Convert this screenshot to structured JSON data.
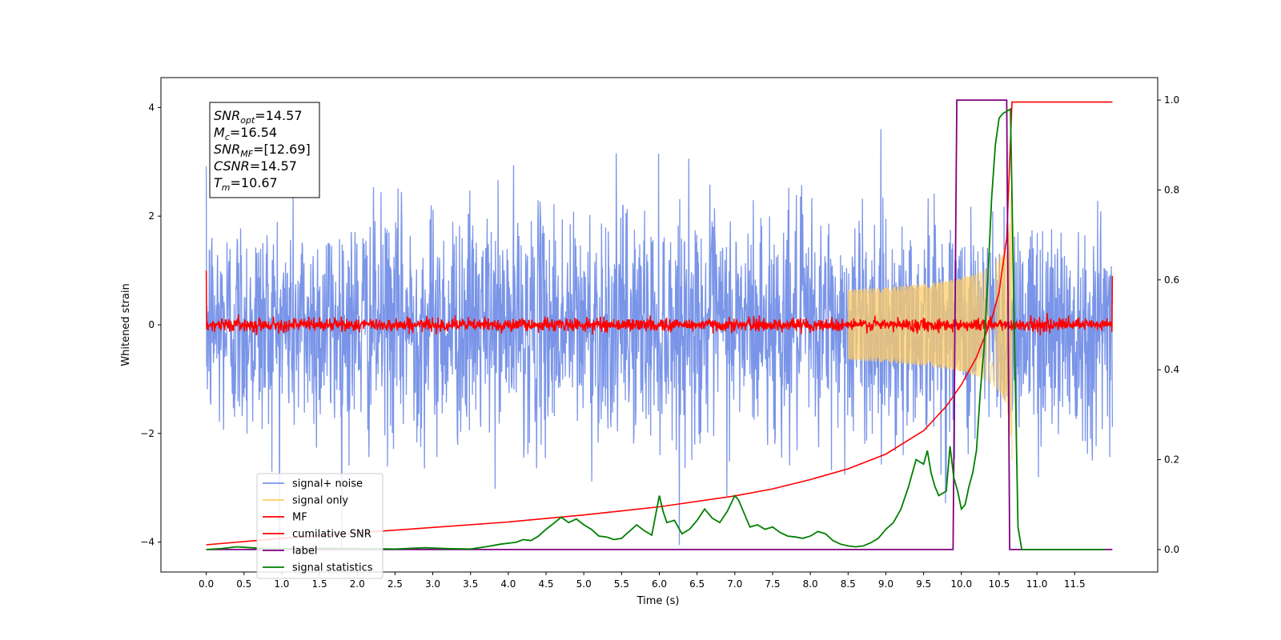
{
  "chart_data": {
    "type": "line",
    "xlabel": "Time (s)",
    "ylabel": "Whitened strain",
    "xlim": [
      -0.6,
      12.6
    ],
    "ylim": [
      -4.55,
      4.55
    ],
    "y2lim": [
      -0.05,
      1.05
    ],
    "x_ticks": [
      "0.0",
      "0.5",
      "1.0",
      "1.5",
      "2.0",
      "2.5",
      "3.0",
      "3.5",
      "4.0",
      "4.5",
      "5.0",
      "5.5",
      "6.0",
      "6.5",
      "7.0",
      "7.5",
      "8.0",
      "8.5",
      "9.0",
      "9.5",
      "10.0",
      "10.5",
      "11.0",
      "11.5"
    ],
    "y_ticks": [
      "4",
      "2",
      "0",
      "−2",
      "−4"
    ],
    "y2_ticks": [
      "1.0",
      "0.8",
      "0.6",
      "0.4",
      "0.2",
      "0.0"
    ],
    "grid": false,
    "legend_placement": "lower-left",
    "annotation": {
      "lines": [
        {
          "base": "SNR",
          "sub": "opt",
          "value": "=14.57"
        },
        {
          "base": "M",
          "sub": "c",
          "value": "=16.54"
        },
        {
          "base": "SNR",
          "sub": "MF",
          "value": "=[12.69]"
        },
        {
          "base": "CSNR",
          "sub": "",
          "value": "=14.57"
        },
        {
          "base": "T",
          "sub": "m",
          "value": "=10.67"
        }
      ]
    },
    "series": [
      {
        "name": "signal+ noise",
        "color": "#7a95e8",
        "axis": "left",
        "kind": "noise",
        "x_range": [
          0.0,
          12.0
        ],
        "amplitude_sigma": 1.0,
        "max": 4.15,
        "min": -4.15
      },
      {
        "name": "signal only",
        "color": "#ffcc66",
        "axis": "left",
        "kind": "chirp",
        "x_range": [
          8.5,
          10.67
        ],
        "peak_amplitude": 2.5,
        "merger_time": 10.67
      },
      {
        "name": "MF",
        "color": "#ff0000",
        "axis": "left",
        "kind": "noise",
        "x_range": [
          0.0,
          12.0
        ],
        "amplitude_sigma": 0.06,
        "start_value": 1.0,
        "end_value": 0.9
      },
      {
        "name": "cumilative SNR",
        "color": "#ff0000",
        "axis": "left",
        "x": [
          0.0,
          1.0,
          2.0,
          3.0,
          4.0,
          5.0,
          6.0,
          7.0,
          7.5,
          8.0,
          8.5,
          9.0,
          9.5,
          9.8,
          10.0,
          10.2,
          10.4,
          10.5,
          10.6,
          10.67,
          12.0
        ],
        "values": [
          -4.05,
          -3.93,
          -3.83,
          -3.73,
          -3.63,
          -3.5,
          -3.35,
          -3.15,
          -3.02,
          -2.85,
          -2.65,
          -2.38,
          -1.95,
          -1.5,
          -1.1,
          -0.6,
          0.1,
          0.6,
          1.6,
          4.1,
          4.1
        ]
      },
      {
        "name": "label",
        "color": "#800080",
        "axis": "right",
        "x": [
          0.0,
          9.89,
          9.94,
          10.6,
          10.64,
          12.0
        ],
        "values": [
          0.0,
          0.0,
          1.0,
          1.0,
          0.0,
          0.0
        ]
      },
      {
        "name": "signal statistics",
        "color": "#008000",
        "axis": "right",
        "x": [
          0.0,
          0.2,
          0.4,
          0.6,
          0.8,
          1.0,
          1.5,
          2.0,
          2.5,
          2.9,
          3.2,
          3.5,
          3.7,
          3.9,
          4.0,
          4.1,
          4.2,
          4.3,
          4.4,
          4.5,
          4.6,
          4.7,
          4.8,
          4.9,
          5.0,
          5.1,
          5.2,
          5.3,
          5.4,
          5.5,
          5.6,
          5.7,
          5.8,
          5.9,
          6.0,
          6.05,
          6.1,
          6.2,
          6.3,
          6.4,
          6.5,
          6.6,
          6.7,
          6.8,
          6.9,
          7.0,
          7.05,
          7.1,
          7.2,
          7.3,
          7.4,
          7.5,
          7.6,
          7.7,
          7.8,
          7.9,
          8.0,
          8.1,
          8.2,
          8.3,
          8.4,
          8.5,
          8.6,
          8.7,
          8.8,
          8.9,
          9.0,
          9.1,
          9.2,
          9.3,
          9.4,
          9.5,
          9.55,
          9.6,
          9.65,
          9.7,
          9.8,
          9.85,
          9.9,
          9.95,
          10.0,
          10.05,
          10.1,
          10.15,
          10.2,
          10.25,
          10.3,
          10.35,
          10.4,
          10.45,
          10.5,
          10.55,
          10.6,
          10.65,
          10.7,
          10.75,
          10.8,
          11.0,
          11.5,
          11.9
        ],
        "values": [
          0.0,
          0.002,
          0.006,
          0.004,
          0.002,
          0.002,
          0.003,
          0.002,
          0.001,
          0.004,
          0.002,
          0.001,
          0.006,
          0.012,
          0.014,
          0.016,
          0.022,
          0.02,
          0.03,
          0.045,
          0.058,
          0.072,
          0.06,
          0.068,
          0.055,
          0.045,
          0.03,
          0.028,
          0.022,
          0.025,
          0.04,
          0.055,
          0.042,
          0.032,
          0.12,
          0.085,
          0.06,
          0.065,
          0.035,
          0.045,
          0.065,
          0.09,
          0.07,
          0.06,
          0.085,
          0.12,
          0.11,
          0.09,
          0.05,
          0.055,
          0.045,
          0.05,
          0.038,
          0.03,
          0.028,
          0.025,
          0.03,
          0.04,
          0.035,
          0.02,
          0.012,
          0.008,
          0.006,
          0.008,
          0.015,
          0.025,
          0.045,
          0.06,
          0.09,
          0.14,
          0.2,
          0.19,
          0.22,
          0.17,
          0.14,
          0.12,
          0.13,
          0.23,
          0.16,
          0.13,
          0.09,
          0.1,
          0.14,
          0.17,
          0.22,
          0.35,
          0.45,
          0.6,
          0.78,
          0.9,
          0.96,
          0.97,
          0.975,
          0.98,
          0.5,
          0.05,
          0.0,
          0.0,
          0.0,
          0.0
        ]
      }
    ]
  }
}
